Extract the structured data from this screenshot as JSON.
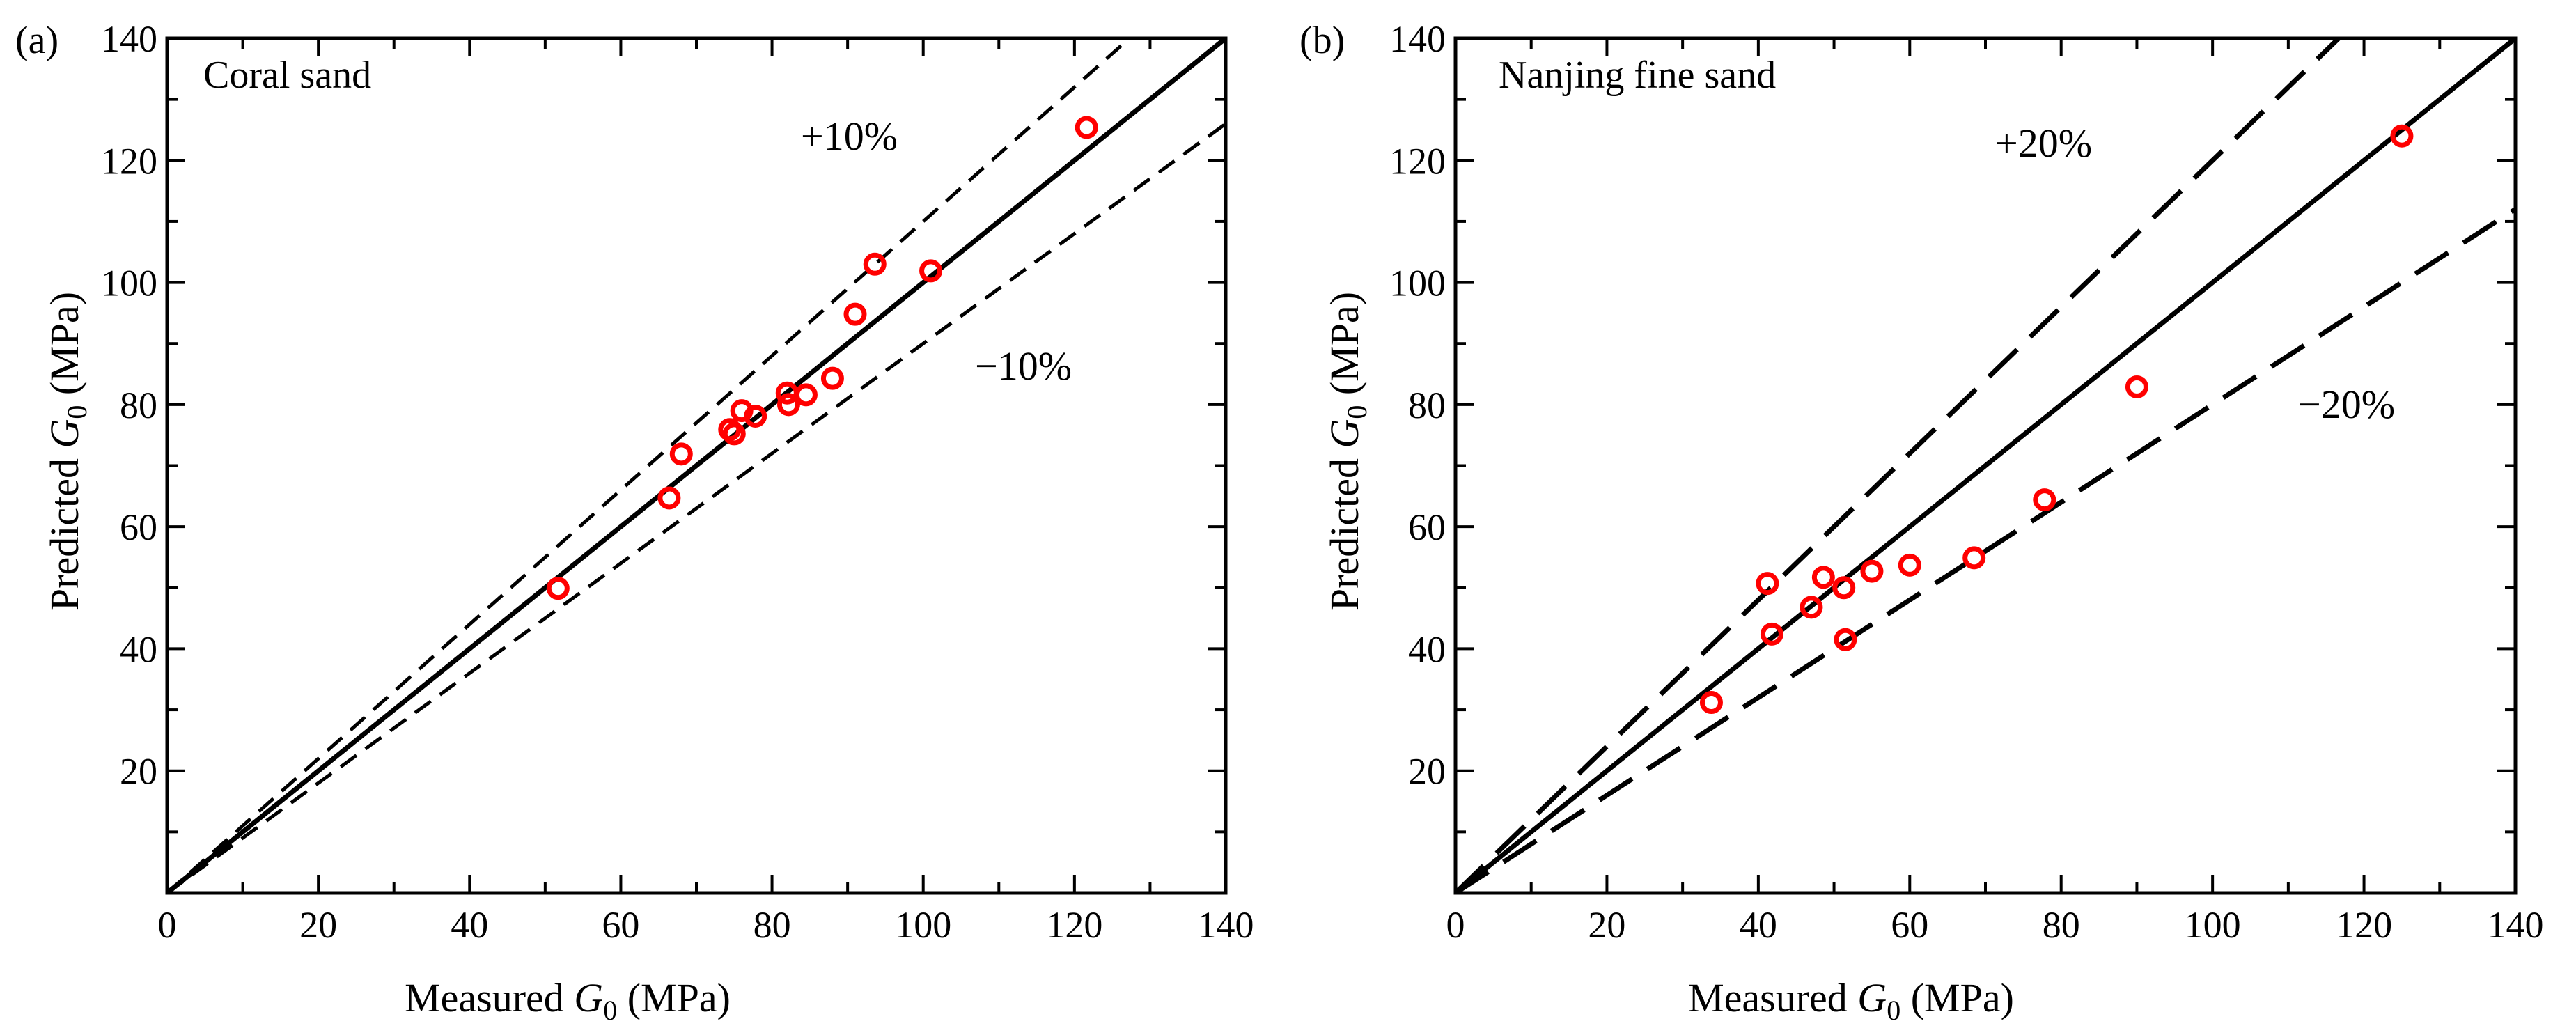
{
  "chart_data": [
    {
      "type": "scatter",
      "panel_tag": "(a)",
      "title": "Coral sand",
      "xlabel": {
        "prefix": "Measured ",
        "var": "G",
        "sub": "0",
        "suffix": " (MPa)"
      },
      "ylabel": {
        "prefix": "Predicted ",
        "var": "G",
        "sub": "0",
        "suffix": " (MPa)"
      },
      "xlim": [
        0,
        140
      ],
      "ylim": [
        0,
        140
      ],
      "x_ticks": [
        "0",
        "20",
        "40",
        "60",
        "80",
        "100",
        "120",
        "140"
      ],
      "y_ticks": [
        "20",
        "40",
        "60",
        "80",
        "100",
        "120",
        "140"
      ],
      "lines": [
        {
          "name": "1:1 line",
          "slope": 1.0,
          "style": "solid"
        },
        {
          "name": "+10%",
          "slope": 1.1,
          "style": "dashed",
          "label": "+10%"
        },
        {
          "name": "-10%",
          "slope": 0.9,
          "style": "dashed",
          "label": "−10%"
        }
      ],
      "marker_color": "#ff0000",
      "points": {
        "x": [
          51.7,
          66.4,
          68.0,
          74.4,
          75.0,
          76.0,
          77.8,
          82.0,
          82.2,
          84.5,
          88.0,
          91.0,
          93.6,
          101.0,
          121.6
        ],
        "y": [
          49.9,
          64.7,
          71.9,
          75.9,
          75.2,
          79.0,
          78.1,
          81.9,
          80.0,
          81.6,
          84.3,
          94.8,
          103.0,
          101.9,
          125.4
        ]
      }
    },
    {
      "type": "scatter",
      "panel_tag": "(b)",
      "title": "Nanjing fine sand",
      "xlabel": {
        "prefix": "Measured ",
        "var": "G",
        "sub": "0",
        "suffix": " (MPa)"
      },
      "ylabel": {
        "prefix": "Predicted ",
        "var": "G",
        "sub": "0",
        "suffix": " (MPa)"
      },
      "xlim": [
        0,
        140
      ],
      "ylim": [
        0,
        140
      ],
      "x_ticks": [
        "0",
        "20",
        "40",
        "60",
        "80",
        "100",
        "120",
        "140"
      ],
      "y_ticks": [
        "20",
        "40",
        "60",
        "80",
        "100",
        "120",
        "140"
      ],
      "lines": [
        {
          "name": "1:1 line",
          "slope": 1.0,
          "style": "solid"
        },
        {
          "name": "+20%",
          "slope": 1.2,
          "style": "dashed",
          "label": "+20%"
        },
        {
          "name": "-20%",
          "slope": 0.8,
          "style": "dashed",
          "label": "−20%"
        }
      ],
      "marker_color": "#ff0000",
      "points": {
        "x": [
          33.8,
          41.2,
          41.8,
          47.0,
          48.6,
          51.3,
          51.5,
          55.0,
          60.0,
          68.5,
          77.8,
          90.0,
          125.0
        ],
        "y": [
          31.2,
          50.7,
          42.4,
          46.8,
          51.7,
          50.0,
          41.5,
          52.7,
          53.7,
          54.9,
          64.4,
          82.9,
          124.0
        ]
      }
    }
  ]
}
